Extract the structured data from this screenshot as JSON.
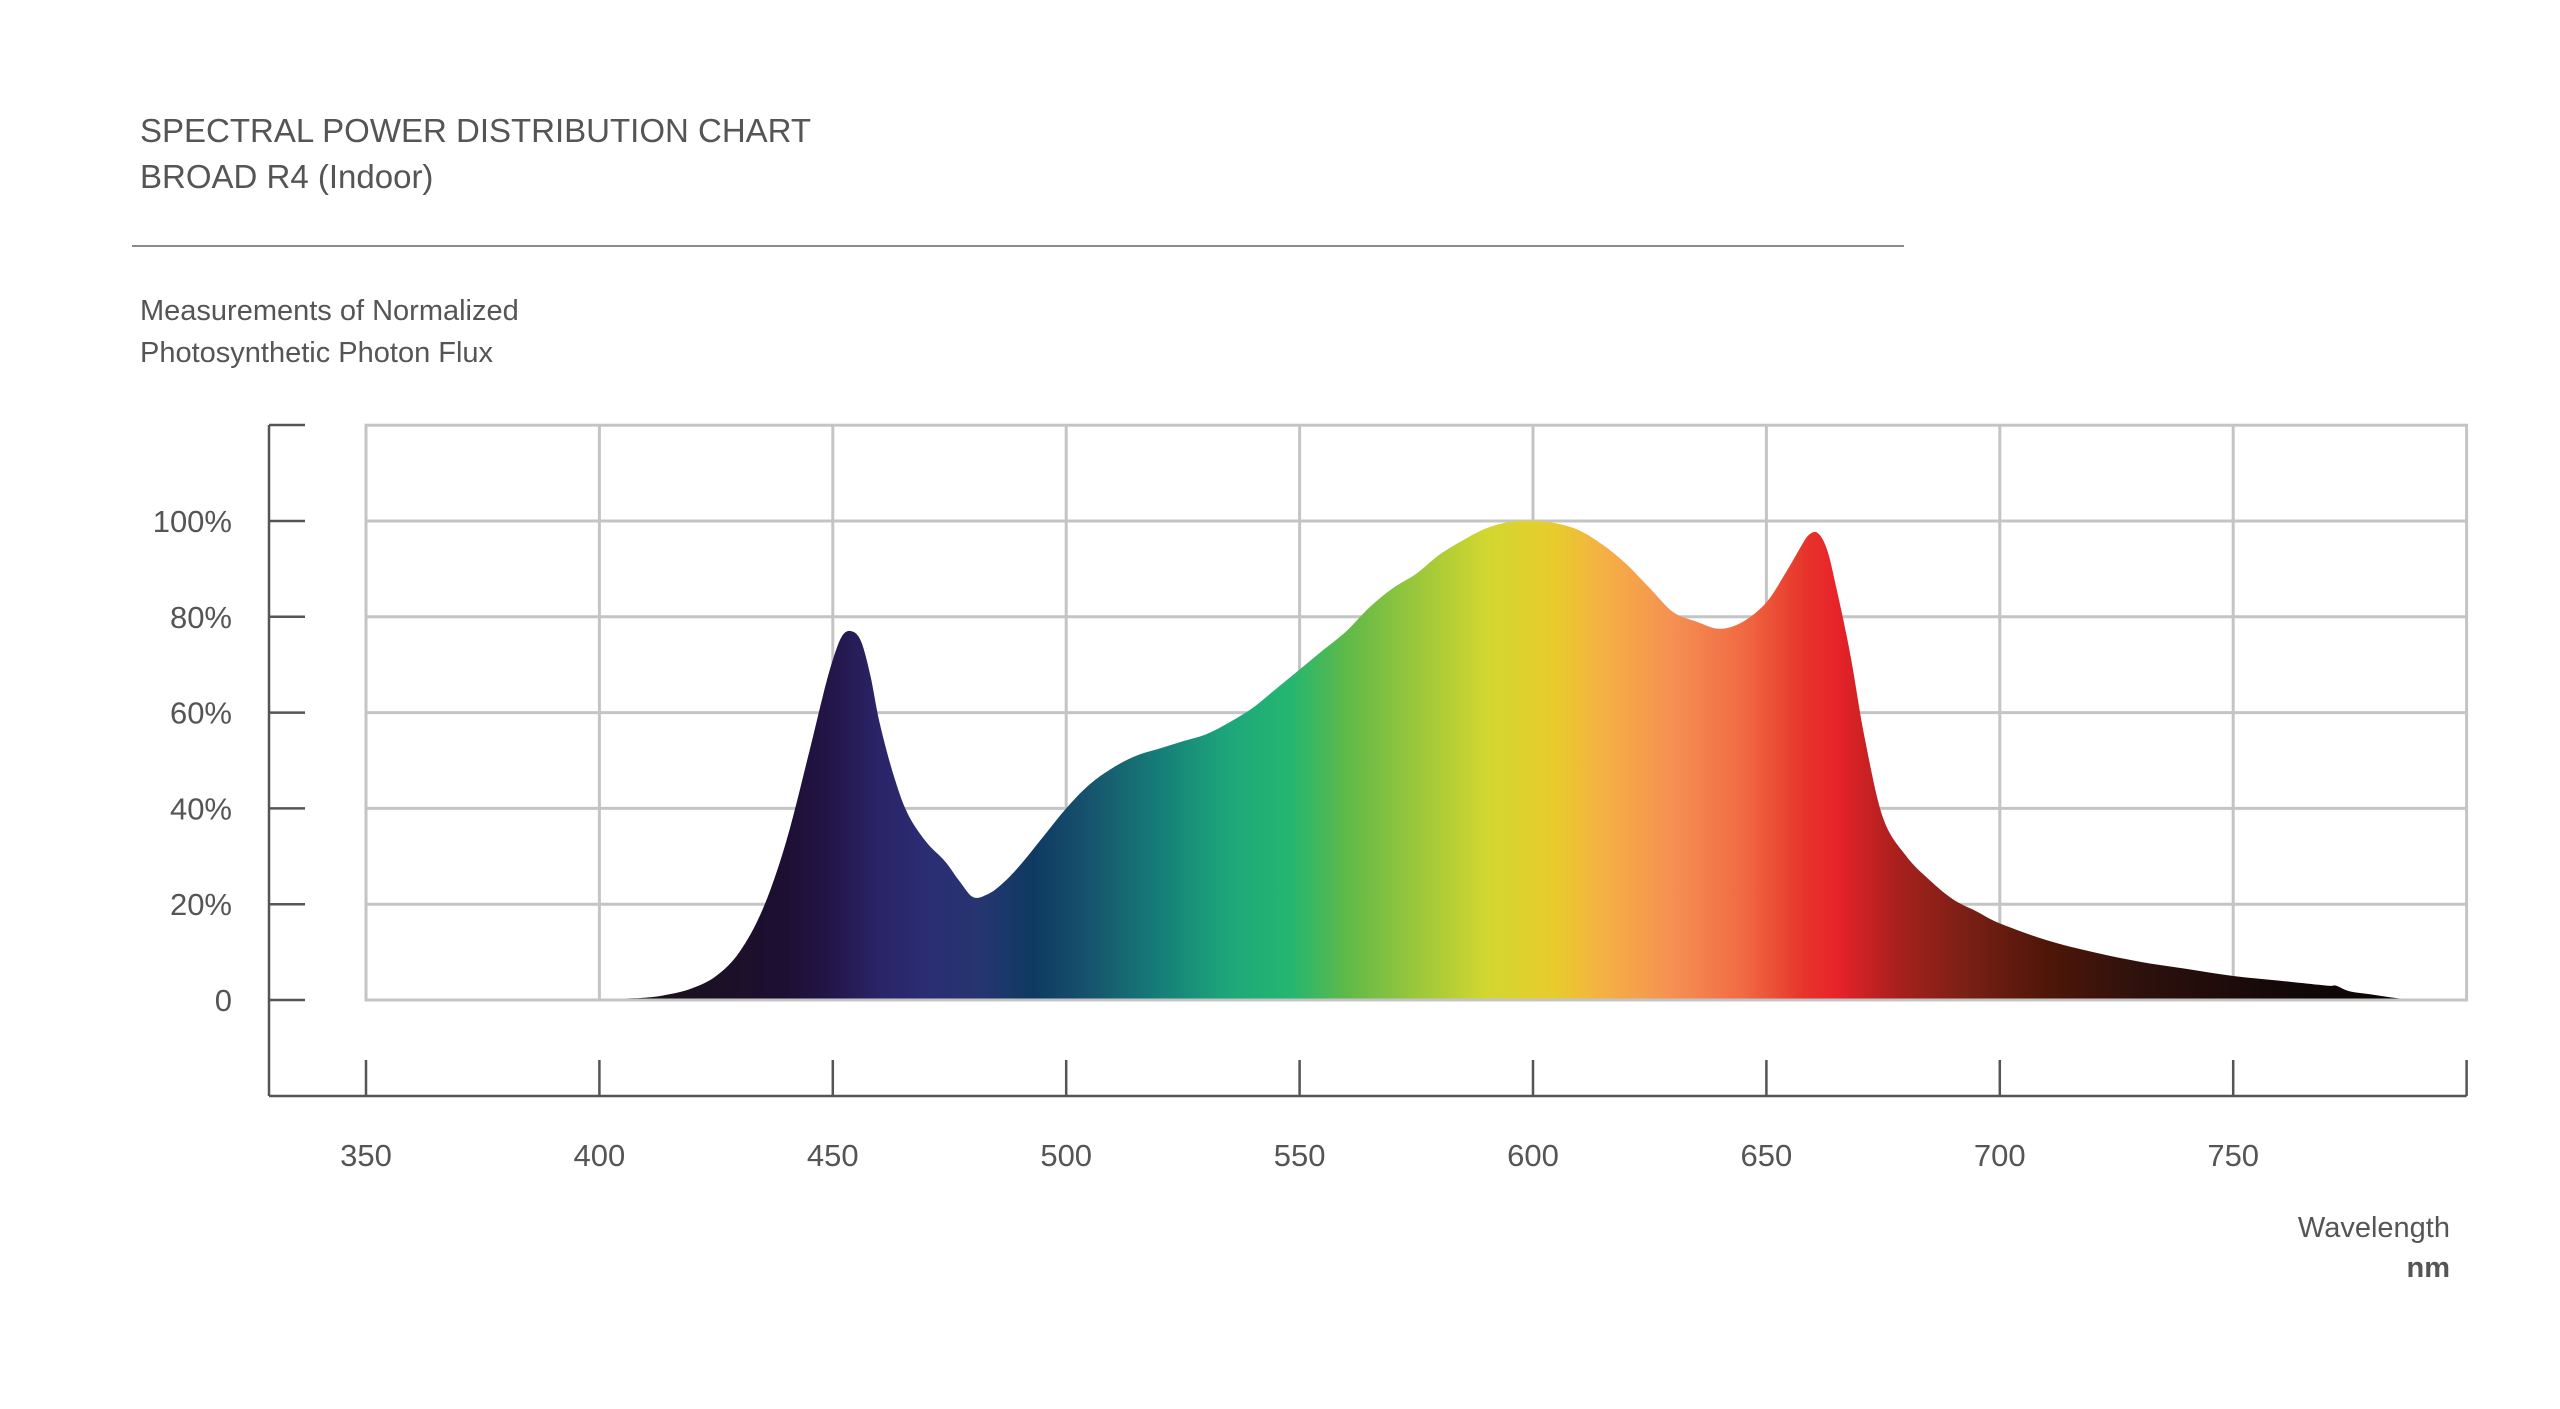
{
  "header": {
    "title": "SPECTRAL POWER DISTRIBUTION CHART",
    "subtitle": "BROAD R4 (Indoor)"
  },
  "y_axis_caption": {
    "line1": "Measurements of Normalized",
    "line2": "Photosynthetic Photon Flux"
  },
  "x_axis_caption": {
    "name": "Wavelength",
    "unit": "nm"
  },
  "chart_data": {
    "type": "area",
    "title": "SPECTRAL POWER DISTRIBUTION CHART",
    "subtitle": "BROAD R4 (Indoor)",
    "xlabel": "Wavelength",
    "xunit": "nm",
    "ylabel": "Measurements of Normalized Photosynthetic Photon Flux",
    "xlim": [
      350,
      800
    ],
    "ylim": [
      -20,
      120
    ],
    "x_ticks": [
      350,
      400,
      450,
      500,
      550,
      600,
      650,
      700,
      750
    ],
    "y_ticks": [
      {
        "value": 0,
        "label": "0"
      },
      {
        "value": 20,
        "label": "20%"
      },
      {
        "value": 40,
        "label": "40%"
      },
      {
        "value": 60,
        "label": "60%"
      },
      {
        "value": 80,
        "label": "80%"
      },
      {
        "value": 100,
        "label": "100%"
      }
    ],
    "grid": true,
    "x": [
      380,
      400,
      410,
      415,
      420,
      425,
      430,
      435,
      440,
      445,
      448,
      450,
      452,
      454,
      456,
      458,
      460,
      463,
      466,
      470,
      474,
      477,
      480,
      483,
      486,
      490,
      495,
      500,
      505,
      510,
      515,
      520,
      525,
      530,
      535,
      540,
      545,
      550,
      555,
      560,
      565,
      570,
      575,
      580,
      585,
      590,
      595,
      600,
      605,
      610,
      615,
      620,
      625,
      630,
      635,
      640,
      645,
      650,
      654,
      657,
      659,
      661,
      663,
      665,
      668,
      671,
      675,
      680,
      685,
      690,
      695,
      700,
      710,
      720,
      730,
      740,
      750,
      760,
      770,
      772,
      775,
      780,
      785,
      790
    ],
    "y": [
      0,
      0.2,
      0.5,
      1.2,
      2.5,
      5,
      10,
      19,
      33,
      52,
      64,
      71,
      76,
      77,
      75,
      68,
      58,
      47,
      39,
      33,
      29,
      25,
      21.5,
      22,
      24,
      28,
      34,
      40,
      45,
      48.5,
      51,
      52.5,
      54,
      55.5,
      58,
      61,
      65,
      69,
      73,
      77,
      82,
      86,
      89,
      93,
      96,
      98.5,
      99.8,
      100,
      99.5,
      98,
      95,
      91,
      86,
      81,
      79,
      77.5,
      79,
      83,
      89,
      94,
      97,
      97.5,
      94,
      86,
      72,
      55,
      38,
      30,
      25,
      21,
      18.5,
      16,
      12.5,
      10,
      8,
      6.5,
      5,
      4,
      3,
      3,
      1.8,
      1.1,
      0.4,
      0
    ],
    "spectrum_colors": [
      {
        "nm": 420,
        "color": "#1a1020"
      },
      {
        "nm": 440,
        "color": "#1d0f33"
      },
      {
        "nm": 450,
        "color": "#23164a"
      },
      {
        "nm": 460,
        "color": "#2a2468"
      },
      {
        "nm": 470,
        "color": "#2b2d73"
      },
      {
        "nm": 482,
        "color": "#253570"
      },
      {
        "nm": 493,
        "color": "#0e3a62"
      },
      {
        "nm": 505,
        "color": "#17536d"
      },
      {
        "nm": 520,
        "color": "#157e78"
      },
      {
        "nm": 535,
        "color": "#1ea77a"
      },
      {
        "nm": 548,
        "color": "#24b671"
      },
      {
        "nm": 560,
        "color": "#5fb949"
      },
      {
        "nm": 575,
        "color": "#9ac73b"
      },
      {
        "nm": 590,
        "color": "#d2d730"
      },
      {
        "nm": 605,
        "color": "#e8cb2c"
      },
      {
        "nm": 615,
        "color": "#f5b044"
      },
      {
        "nm": 630,
        "color": "#f59052"
      },
      {
        "nm": 645,
        "color": "#f16a43"
      },
      {
        "nm": 658,
        "color": "#e6352b"
      },
      {
        "nm": 665,
        "color": "#e8232a"
      },
      {
        "nm": 678,
        "color": "#a8201d"
      },
      {
        "nm": 692,
        "color": "#7c2016"
      },
      {
        "nm": 710,
        "color": "#4f1608"
      },
      {
        "nm": 730,
        "color": "#2e110d"
      },
      {
        "nm": 760,
        "color": "#140808"
      },
      {
        "nm": 790,
        "color": "#0a0404"
      }
    ],
    "colors": {
      "grid": "#c4c4c4",
      "axis": "#555555",
      "text": "#555555"
    }
  }
}
